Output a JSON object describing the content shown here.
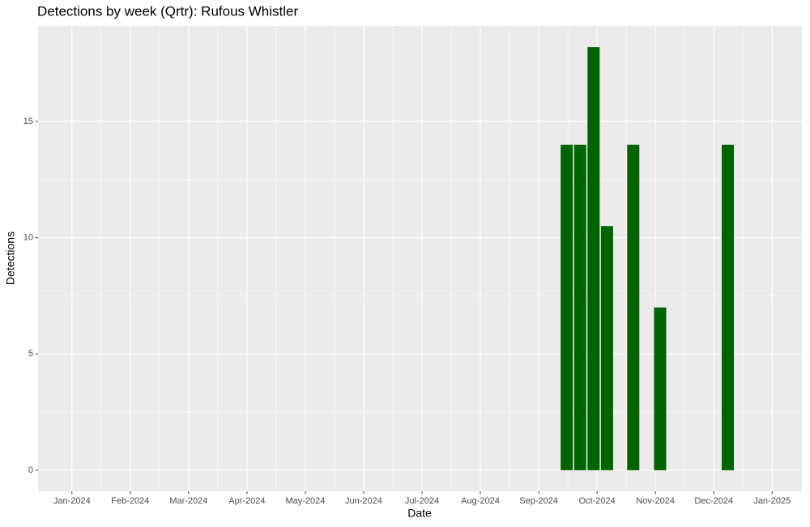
{
  "chart_data": {
    "type": "bar",
    "title": "Detections by week (Qrtr): Rufous Whistler",
    "x_label": "Date",
    "y_label": "Detections",
    "x": [
      8.48,
      8.71,
      8.94,
      9.17,
      9.62,
      10.08,
      11.24
    ],
    "values": [
      14,
      14,
      18.2,
      10.5,
      14,
      7,
      14
    ],
    "color": "#006400",
    "xlim": [
      -0.58,
      12.51
    ],
    "xticks": [
      {
        "value": 0,
        "label": "Jan-2024"
      },
      {
        "value": 1,
        "label": "Feb-2024"
      },
      {
        "value": 2,
        "label": "Mar-2024"
      },
      {
        "value": 3,
        "label": "Apr-2024"
      },
      {
        "value": 4,
        "label": "May-2024"
      },
      {
        "value": 5,
        "label": "Jun-2024"
      },
      {
        "value": 6,
        "label": "Jul-2024"
      },
      {
        "value": 7,
        "label": "Aug-2024"
      },
      {
        "value": 8,
        "label": "Sep-2024"
      },
      {
        "value": 9,
        "label": "Oct-2024"
      },
      {
        "value": 10,
        "label": "Nov-2024"
      },
      {
        "value": 11,
        "label": "Dec-2024"
      },
      {
        "value": 12,
        "label": "Jan-2025"
      }
    ],
    "ylim": [
      -0.91,
      19.11
    ],
    "yticks": [
      0,
      5,
      10,
      15
    ],
    "grid": true
  }
}
